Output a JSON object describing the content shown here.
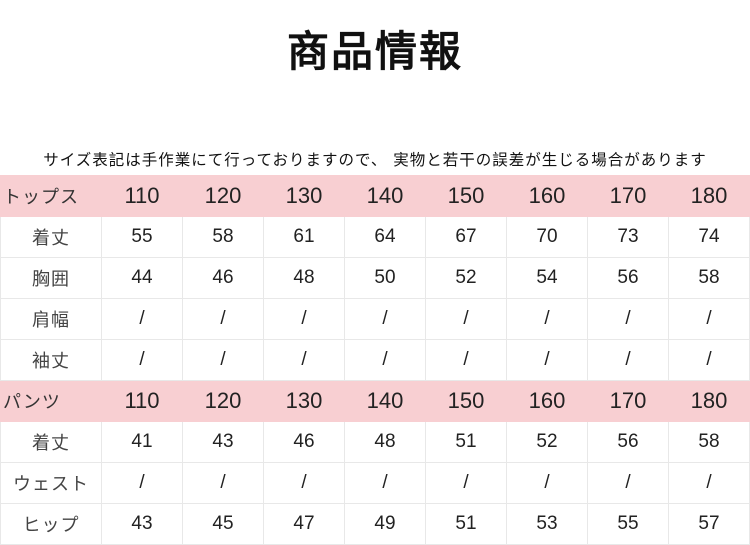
{
  "title": "商品情報",
  "note": "サイズ表記は手作業にて行っておりますので、 実物と若干の誤差が生じる場合があります",
  "colors": {
    "header_bg": "#f8cfd2",
    "grid": "#e8e8e8"
  },
  "sections": [
    {
      "name": "トップス",
      "sizes": [
        "110",
        "120",
        "130",
        "140",
        "150",
        "160",
        "170",
        "180"
      ],
      "rows": [
        {
          "label": "着丈",
          "values": [
            "55",
            "58",
            "61",
            "64",
            "67",
            "70",
            "73",
            "74"
          ]
        },
        {
          "label": "胸囲",
          "values": [
            "44",
            "46",
            "48",
            "50",
            "52",
            "54",
            "56",
            "58"
          ]
        },
        {
          "label": "肩幅",
          "values": [
            "/",
            "/",
            "/",
            "/",
            "/",
            "/",
            "/",
            "/"
          ]
        },
        {
          "label": "袖丈",
          "values": [
            "/",
            "/",
            "/",
            "/",
            "/",
            "/",
            "/",
            "/"
          ]
        }
      ]
    },
    {
      "name": "パンツ",
      "sizes": [
        "110",
        "120",
        "130",
        "140",
        "150",
        "160",
        "170",
        "180"
      ],
      "rows": [
        {
          "label": "着丈",
          "values": [
            "41",
            "43",
            "46",
            "48",
            "51",
            "52",
            "56",
            "58"
          ]
        },
        {
          "label": "ウェスト",
          "values": [
            "/",
            "/",
            "/",
            "/",
            "/",
            "/",
            "/",
            "/"
          ]
        },
        {
          "label": "ヒップ",
          "values": [
            "43",
            "45",
            "47",
            "49",
            "51",
            "53",
            "55",
            "57"
          ]
        }
      ]
    }
  ]
}
